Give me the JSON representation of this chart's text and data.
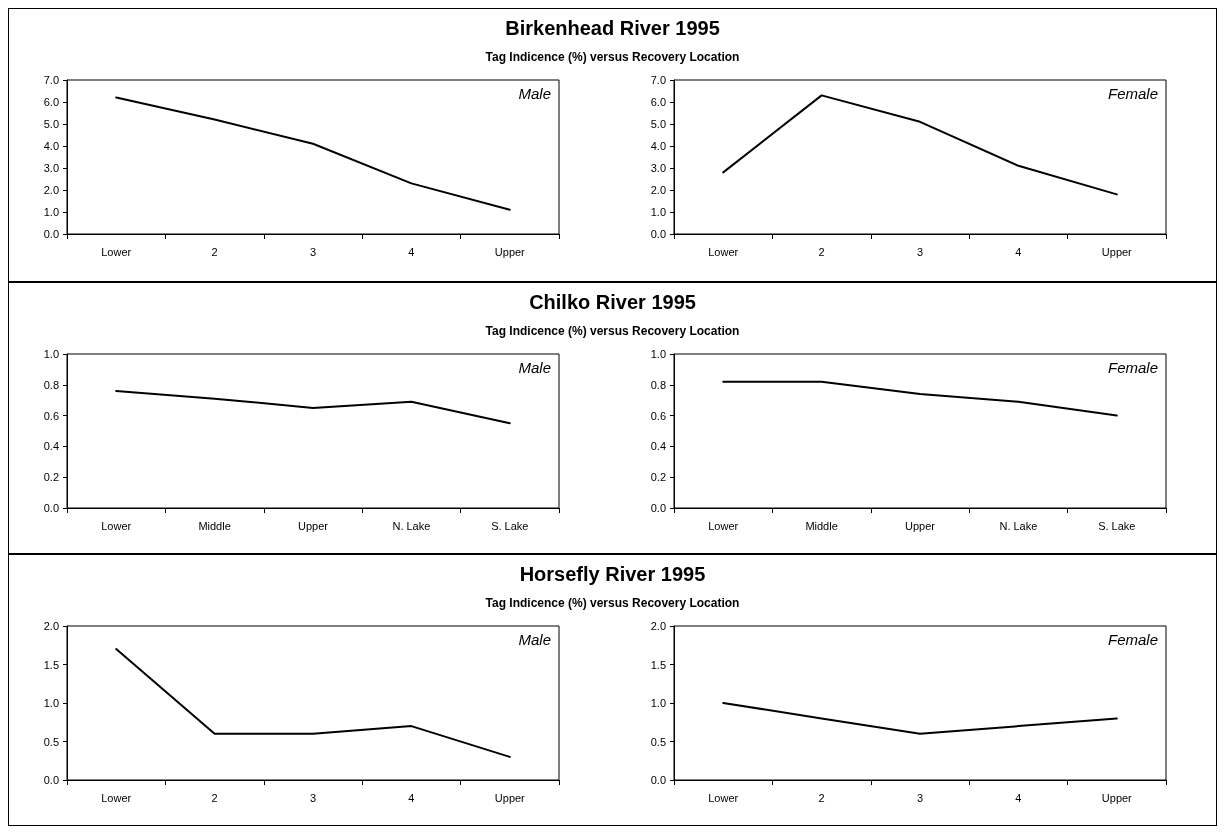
{
  "chart_data": [
    {
      "type": "line",
      "title": "Birkenhead River 1995",
      "subtitle": "Tag Indicence (%) versus Recovery Location",
      "annotations": [
        "Male"
      ],
      "categories": [
        "Lower",
        "2",
        "3",
        "4",
        "Upper"
      ],
      "series": [
        {
          "color": "#000000",
          "values": [
            6.2,
            5.2,
            4.1,
            2.3,
            1.1
          ]
        }
      ],
      "ylim": [
        0,
        7
      ],
      "yticks": [
        {
          "value": 0,
          "label": "0.0"
        },
        {
          "value": 1,
          "label": "1.0"
        },
        {
          "value": 2,
          "label": "2.0"
        },
        {
          "value": 3,
          "label": "3.0"
        },
        {
          "value": 4,
          "label": "4.0"
        },
        {
          "value": 5,
          "label": "5.0"
        },
        {
          "value": 6,
          "label": "6.0"
        },
        {
          "value": 7,
          "label": "7.0"
        }
      ],
      "grid": false,
      "marker": "none",
      "line_style": "solid"
    },
    {
      "type": "line",
      "annotations": [
        "Female"
      ],
      "categories": [
        "Lower",
        "2",
        "3",
        "4",
        "Upper"
      ],
      "series": [
        {
          "color": "#000000",
          "values": [
            2.8,
            6.3,
            5.1,
            3.1,
            1.8
          ]
        }
      ],
      "ylim": [
        0,
        7
      ],
      "yticks": [
        {
          "value": 0,
          "label": "0.0"
        },
        {
          "value": 1,
          "label": "1.0"
        },
        {
          "value": 2,
          "label": "2.0"
        },
        {
          "value": 3,
          "label": "3.0"
        },
        {
          "value": 4,
          "label": "4.0"
        },
        {
          "value": 5,
          "label": "5.0"
        },
        {
          "value": 6,
          "label": "6.0"
        },
        {
          "value": 7,
          "label": "7.0"
        }
      ],
      "grid": false,
      "marker": "none",
      "line_style": "solid"
    },
    {
      "type": "line",
      "title": "Chilko River 1995",
      "subtitle": "Tag Indicence (%) versus Recovery Location",
      "annotations": [
        "Male"
      ],
      "categories": [
        "Lower",
        "Middle",
        "Upper",
        "N. Lake",
        "S. Lake"
      ],
      "series": [
        {
          "color": "#000000",
          "values": [
            0.76,
            0.71,
            0.65,
            0.69,
            0.55
          ]
        }
      ],
      "ylim": [
        0,
        1
      ],
      "yticks": [
        {
          "value": 0,
          "label": "0.0"
        },
        {
          "value": 0.2,
          "label": "0.2"
        },
        {
          "value": 0.4,
          "label": "0.4"
        },
        {
          "value": 0.6,
          "label": "0.6"
        },
        {
          "value": 0.8,
          "label": "0.8"
        },
        {
          "value": 1,
          "label": "1.0"
        }
      ],
      "grid": false,
      "marker": "none",
      "line_style": "solid"
    },
    {
      "type": "line",
      "annotations": [
        "Female"
      ],
      "categories": [
        "Lower",
        "Middle",
        "Upper",
        "N. Lake",
        "S. Lake"
      ],
      "series": [
        {
          "color": "#000000",
          "values": [
            0.82,
            0.82,
            0.74,
            0.69,
            0.6
          ]
        }
      ],
      "ylim": [
        0,
        1
      ],
      "yticks": [
        {
          "value": 0,
          "label": "0.0"
        },
        {
          "value": 0.2,
          "label": "0.2"
        },
        {
          "value": 0.4,
          "label": "0.4"
        },
        {
          "value": 0.6,
          "label": "0.6"
        },
        {
          "value": 0.8,
          "label": "0.8"
        },
        {
          "value": 1,
          "label": "1.0"
        }
      ],
      "grid": false,
      "marker": "none",
      "line_style": "solid"
    },
    {
      "type": "line",
      "title": "Horsefly River 1995",
      "subtitle": "Tag Indicence (%) versus Recovery Location",
      "annotations": [
        "Male"
      ],
      "categories": [
        "Lower",
        "2",
        "3",
        "4",
        "Upper"
      ],
      "series": [
        {
          "color": "#000000",
          "values": [
            1.7,
            0.6,
            0.6,
            0.7,
            0.3
          ]
        }
      ],
      "ylim": [
        0,
        2
      ],
      "yticks": [
        {
          "value": 0,
          "label": "0.0"
        },
        {
          "value": 0.5,
          "label": "0.5"
        },
        {
          "value": 1,
          "label": "1.0"
        },
        {
          "value": 1.5,
          "label": "1.5"
        },
        {
          "value": 2,
          "label": "2.0"
        }
      ],
      "grid": false,
      "marker": "none",
      "line_style": "solid"
    },
    {
      "type": "line",
      "annotations": [
        "Female"
      ],
      "categories": [
        "Lower",
        "2",
        "3",
        "4",
        "Upper"
      ],
      "series": [
        {
          "color": "#000000",
          "values": [
            1.0,
            0.8,
            0.6,
            0.7,
            0.8
          ]
        }
      ],
      "ylim": [
        0,
        2
      ],
      "yticks": [
        {
          "value": 0,
          "label": "0.0"
        },
        {
          "value": 0.5,
          "label": "0.5"
        },
        {
          "value": 1,
          "label": "1.0"
        },
        {
          "value": 1.5,
          "label": "1.5"
        },
        {
          "value": 2,
          "label": "2.0"
        }
      ],
      "grid": false,
      "marker": "none",
      "line_style": "solid"
    }
  ]
}
